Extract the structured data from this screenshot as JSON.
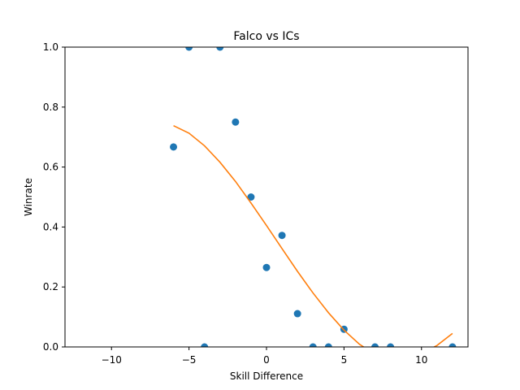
{
  "chart_data": {
    "type": "scatter",
    "title": "Falco vs ICs",
    "xlabel": "Skill Difference",
    "ylabel": "Winrate",
    "xlim": [
      -13,
      13
    ],
    "ylim": [
      0,
      1
    ],
    "xticks": [
      -10,
      -5,
      0,
      5,
      10
    ],
    "xtick_labels": [
      "−10",
      "−5",
      "0",
      "5",
      "10"
    ],
    "yticks": [
      0.0,
      0.2,
      0.4,
      0.6,
      0.8,
      1.0
    ],
    "ytick_labels": [
      "0.0",
      "0.2",
      "0.4",
      "0.6",
      "0.8",
      "1.0"
    ],
    "grid": false,
    "legend": null,
    "series": [
      {
        "kind": "points",
        "color": "#1f77b4",
        "x": [
          -6,
          -5,
          -4,
          -3,
          -2,
          -1,
          0,
          1,
          2,
          3,
          4,
          5,
          7,
          8,
          12
        ],
        "y": [
          0.667,
          1.0,
          0.0,
          1.0,
          0.75,
          0.5,
          0.265,
          0.372,
          0.111,
          0.0,
          0.0,
          0.059,
          0.0,
          0.0,
          0.0
        ]
      },
      {
        "kind": "line",
        "color": "#ff7f0e",
        "x": [
          -6,
          -5,
          -4,
          -3,
          -2,
          -1,
          0,
          1,
          2,
          3,
          4,
          5,
          6,
          7,
          8,
          9,
          10,
          11,
          12
        ],
        "y": [
          0.738,
          0.713,
          0.671,
          0.616,
          0.552,
          0.48,
          0.405,
          0.328,
          0.252,
          0.18,
          0.114,
          0.056,
          0.009,
          -0.025,
          -0.043,
          -0.043,
          -0.022,
          0.005,
          0.045
        ]
      }
    ]
  }
}
